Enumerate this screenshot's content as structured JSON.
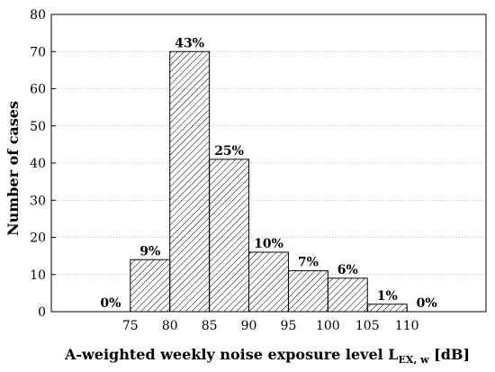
{
  "chart_data": {
    "type": "bar",
    "title": "",
    "xlabel": {
      "text": "A-weighted weekly noise exposure level L",
      "subscript": "EX, w",
      "unit": " [dB]"
    },
    "ylabel": "Number of cases",
    "xlim": [
      65,
      120
    ],
    "ylim": [
      0,
      80
    ],
    "x_ticks": [
      75,
      80,
      85,
      90,
      95,
      100,
      105,
      110
    ],
    "y_ticks": [
      0,
      10,
      20,
      30,
      40,
      50,
      60,
      70,
      80
    ],
    "grid": true,
    "bins": [
      {
        "from": 70,
        "to": 75,
        "value": 0,
        "label": "0%"
      },
      {
        "from": 75,
        "to": 80,
        "value": 14,
        "label": "9%"
      },
      {
        "from": 80,
        "to": 85,
        "value": 70,
        "label": "43%"
      },
      {
        "from": 85,
        "to": 90,
        "value": 41,
        "label": "25%"
      },
      {
        "from": 90,
        "to": 95,
        "value": 16,
        "label": "10%"
      },
      {
        "from": 95,
        "to": 100,
        "value": 11,
        "label": "7%"
      },
      {
        "from": 100,
        "to": 105,
        "value": 9,
        "label": "6%"
      },
      {
        "from": 105,
        "to": 110,
        "value": 2,
        "label": "1%"
      },
      {
        "from": 110,
        "to": 115,
        "value": 0,
        "label": "0%"
      }
    ]
  }
}
